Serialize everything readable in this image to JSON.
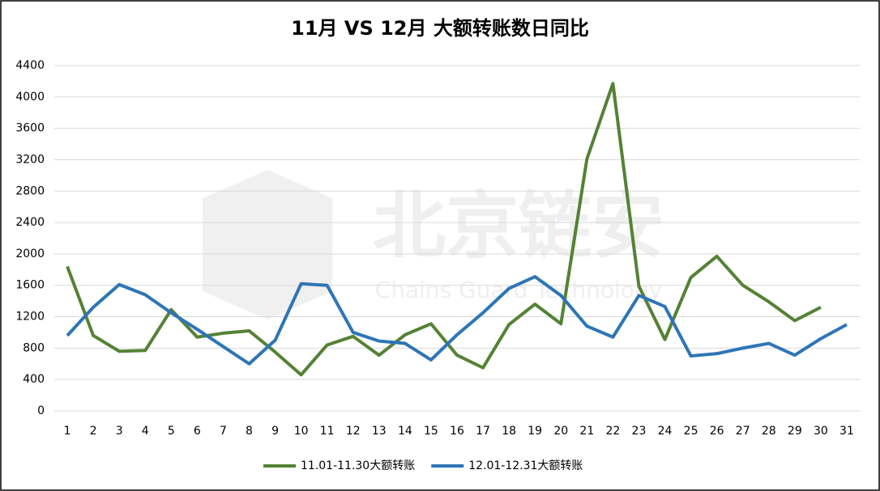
{
  "chart_data": {
    "type": "line",
    "title": "11月 VS 12月 大额转账数日同比",
    "watermark": [
      "北京链安",
      "Chains Guard Technology"
    ],
    "categories": [
      "1",
      "2",
      "3",
      "4",
      "5",
      "6",
      "7",
      "8",
      "9",
      "10",
      "11",
      "12",
      "13",
      "14",
      "15",
      "16",
      "17",
      "18",
      "19",
      "20",
      "21",
      "22",
      "23",
      "24",
      "25",
      "26",
      "27",
      "28",
      "29",
      "30",
      "31"
    ],
    "series": [
      {
        "name": "11.01-11.30大额转账",
        "color": "#548235",
        "values": [
          1840,
          960,
          760,
          770,
          1290,
          940,
          990,
          1020,
          750,
          460,
          840,
          950,
          710,
          970,
          1110,
          710,
          550,
          1100,
          1360,
          1110,
          3210,
          4170,
          1590,
          910,
          1700,
          1970,
          1600,
          1390,
          1150,
          1320,
          null
        ]
      },
      {
        "name": "12.01-12.31大额转账",
        "color": "#2e75b6",
        "values": [
          960,
          1320,
          1610,
          1480,
          1250,
          1040,
          820,
          600,
          900,
          1620,
          1600,
          1000,
          890,
          860,
          650,
          970,
          1250,
          1560,
          1710,
          1470,
          1080,
          940,
          1470,
          1330,
          700,
          730,
          800,
          860,
          710,
          920,
          1100
        ]
      }
    ],
    "ylim": [
      0,
      4400
    ],
    "yticks": [
      0,
      400,
      800,
      1200,
      1600,
      2000,
      2400,
      2800,
      3200,
      3600,
      4000,
      4400
    ],
    "grid": true,
    "legend": "bottom"
  }
}
